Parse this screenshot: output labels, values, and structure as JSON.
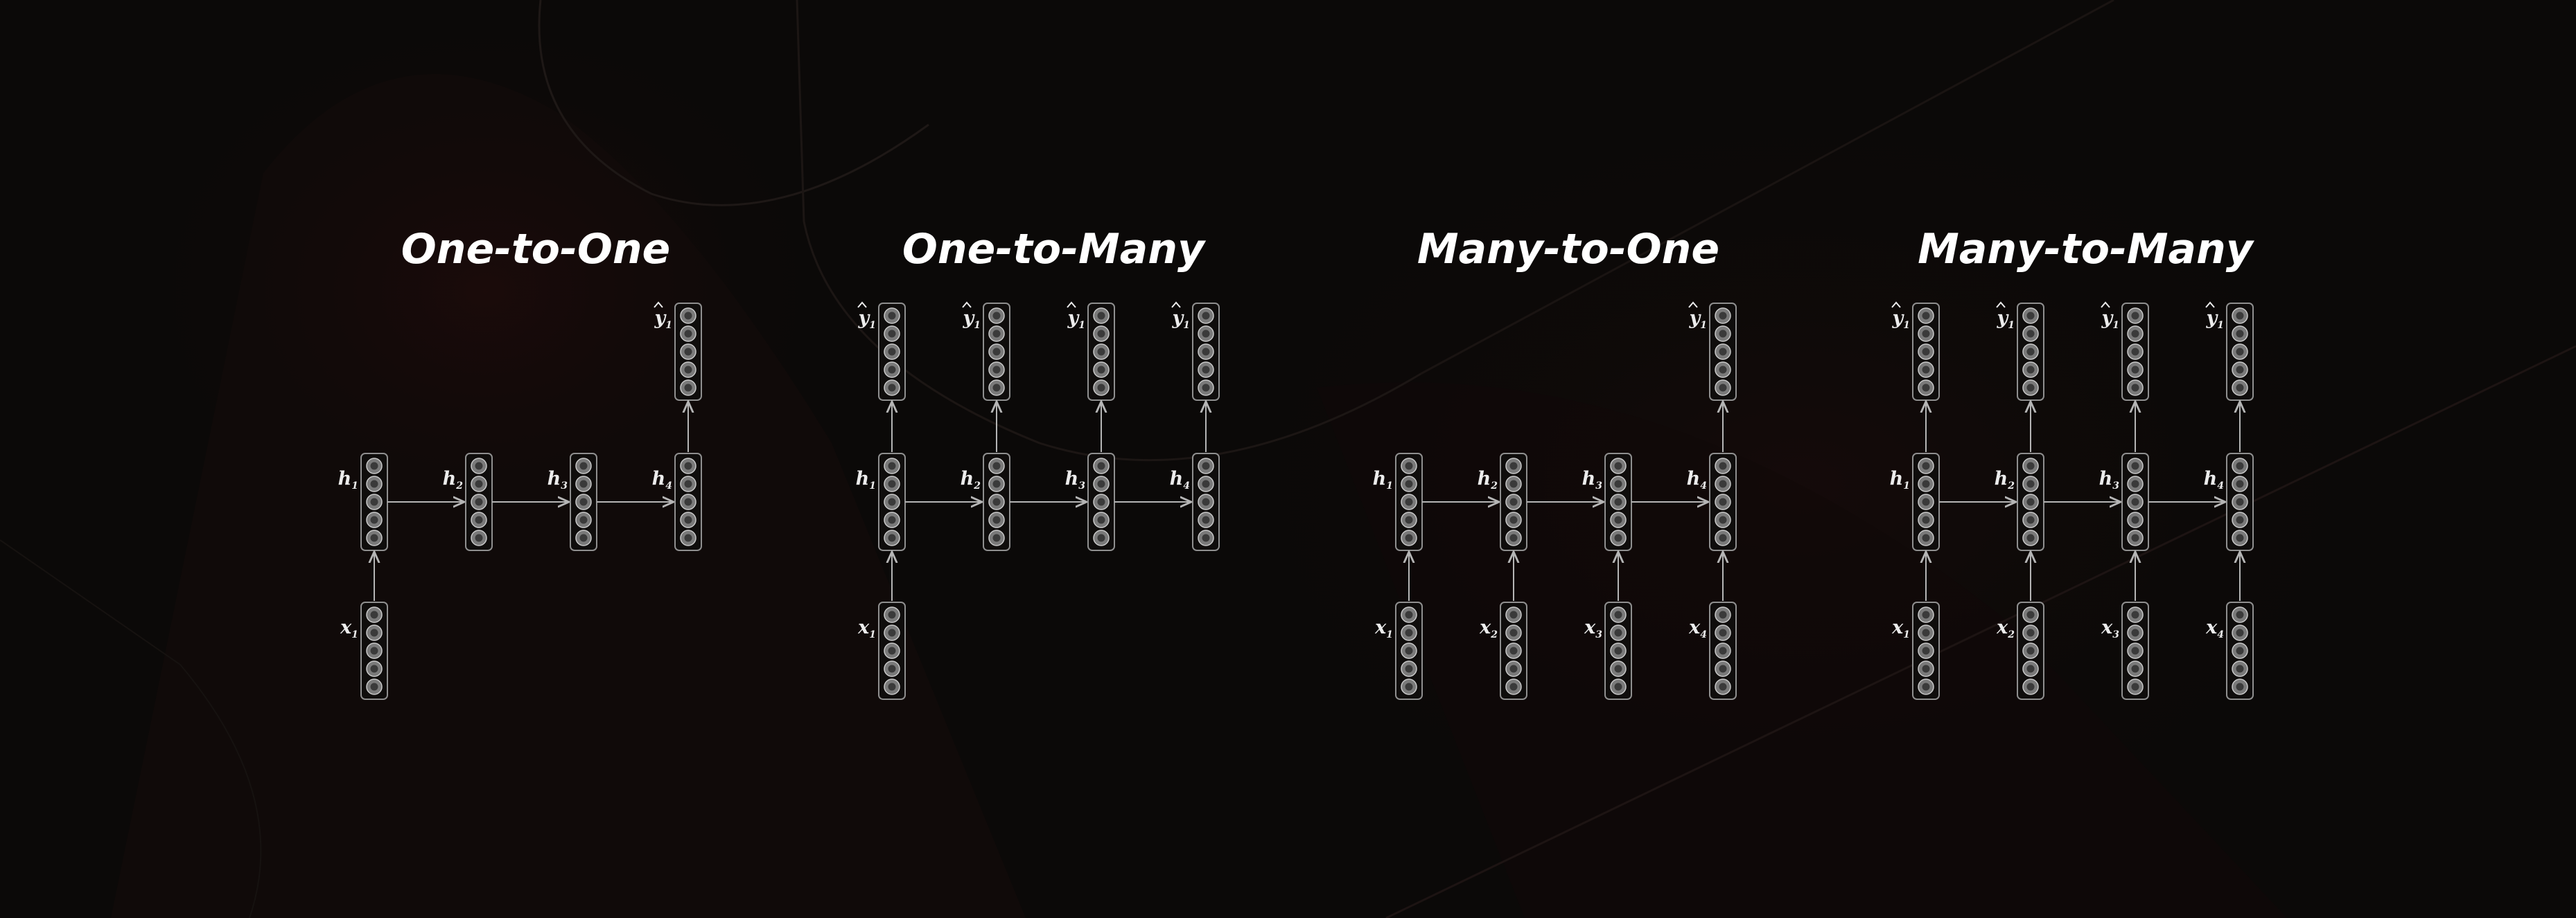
{
  "panels": [
    {
      "id": "one-to-one",
      "title": "One-to-One",
      "inputs": [
        {
          "var": "x",
          "sub": "1"
        },
        null,
        null,
        null
      ],
      "hidden": [
        {
          "var": "h",
          "sub": "1"
        },
        {
          "var": "h",
          "sub": "2"
        },
        {
          "var": "h",
          "sub": "3"
        },
        {
          "var": "h",
          "sub": "4"
        }
      ],
      "outputs": [
        null,
        null,
        null,
        {
          "var": "y",
          "sub": "1"
        }
      ]
    },
    {
      "id": "one-to-many",
      "title": "One-to-Many",
      "inputs": [
        {
          "var": "x",
          "sub": "1"
        },
        null,
        null,
        null
      ],
      "hidden": [
        {
          "var": "h",
          "sub": "1"
        },
        {
          "var": "h",
          "sub": "2"
        },
        {
          "var": "h",
          "sub": "3"
        },
        {
          "var": "h",
          "sub": "4"
        }
      ],
      "outputs": [
        {
          "var": "y",
          "sub": "1"
        },
        {
          "var": "y",
          "sub": "1"
        },
        {
          "var": "y",
          "sub": "1"
        },
        {
          "var": "y",
          "sub": "1"
        }
      ]
    },
    {
      "id": "many-to-one",
      "title": "Many-to-One",
      "inputs": [
        {
          "var": "x",
          "sub": "1"
        },
        {
          "var": "x",
          "sub": "2"
        },
        {
          "var": "x",
          "sub": "3"
        },
        {
          "var": "x",
          "sub": "4"
        }
      ],
      "hidden": [
        {
          "var": "h",
          "sub": "1"
        },
        {
          "var": "h",
          "sub": "2"
        },
        {
          "var": "h",
          "sub": "3"
        },
        {
          "var": "h",
          "sub": "4"
        }
      ],
      "outputs": [
        null,
        null,
        null,
        {
          "var": "y",
          "sub": "1"
        }
      ]
    },
    {
      "id": "many-to-many",
      "title": "Many-to-Many",
      "inputs": [
        {
          "var": "x",
          "sub": "1"
        },
        {
          "var": "x",
          "sub": "2"
        },
        {
          "var": "x",
          "sub": "3"
        },
        {
          "var": "x",
          "sub": "4"
        }
      ],
      "hidden": [
        {
          "var": "h",
          "sub": "1"
        },
        {
          "var": "h",
          "sub": "2"
        },
        {
          "var": "h",
          "sub": "3"
        },
        {
          "var": "h",
          "sub": "4"
        }
      ],
      "outputs": [
        {
          "var": "y",
          "sub": "1"
        },
        {
          "var": "y",
          "sub": "1"
        },
        {
          "var": "y",
          "sub": "1"
        },
        {
          "var": "y",
          "sub": "1"
        }
      ]
    }
  ],
  "colors": {
    "background": "#0b0908",
    "box_stroke": "#8f8f8f",
    "neuron_fill": "#7a7a7a",
    "arrow": "#b5b5b5",
    "text": "#ffffff"
  }
}
